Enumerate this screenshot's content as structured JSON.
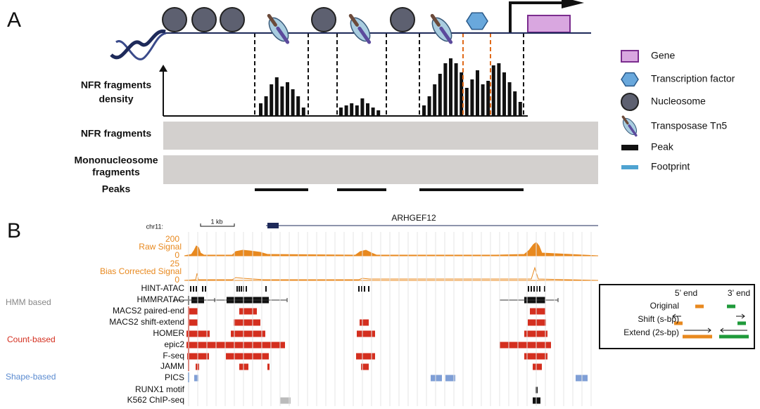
{
  "panel_a": {
    "label": "A",
    "rows": {
      "density": [
        "NFR fragments",
        "density"
      ],
      "nfr": "NFR fragments",
      "mono": [
        "Mononucleosome",
        "fragments"
      ],
      "peaks": "Peaks"
    },
    "legend": [
      "Gene",
      "Transcription factor",
      "Nucleosome",
      "Transposase Tn5",
      "Peak",
      "Footprint"
    ]
  },
  "panel_b": {
    "label": "B",
    "chrom": "chr11:",
    "scale": "1 kb",
    "gene": "ARHGEF12",
    "raw_signal": {
      "label": "Raw Signal",
      "ticks": [
        200,
        0
      ]
    },
    "bias_signal": {
      "label": "Bias Corrected Signal",
      "ticks": [
        25,
        0
      ]
    },
    "tracks": [
      "HINT-ATAC",
      "HMMRATAC",
      "MACS2 paired-end",
      "MACS2 shift-extend",
      "HOMER",
      "epic2",
      "F-seq",
      "JAMM",
      "PICS",
      "RUNX1 motif",
      "K562 ChIP-seq"
    ],
    "groups": [
      "HMM based",
      "Count-based",
      "Shape-based"
    ],
    "inset": {
      "five_prime": "5’ end",
      "three_prime": "3’ end",
      "rows": [
        "Original",
        "Shift (s-bp)",
        "Extend (2s-bp)"
      ]
    }
  }
}
